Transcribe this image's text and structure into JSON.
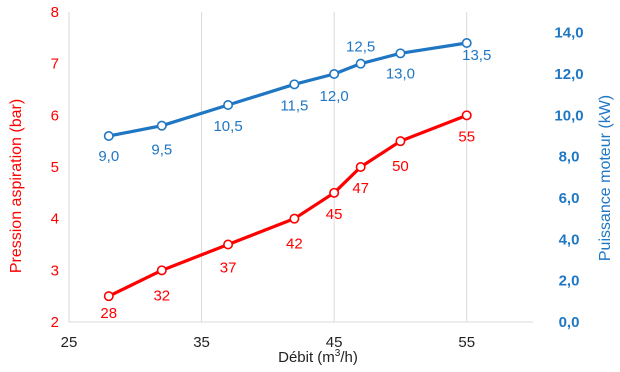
{
  "chart_data": {
    "type": "line",
    "xlabel_main": "Débit (m",
    "xlabel_sup": "3",
    "xlabel_end": "/h)",
    "ylabel_left": "Pression aspiration (bar)",
    "ylabel_right": "Puissance moteur (kW)",
    "xlim": [
      25,
      60
    ],
    "ylim_left": [
      2,
      8
    ],
    "ylim_right": [
      0,
      15
    ],
    "x_ticks": [
      "25",
      "35",
      "45",
      "55"
    ],
    "x_tick_values": [
      25,
      35,
      45,
      55
    ],
    "y_left_ticks": [
      "2",
      "3",
      "4",
      "5",
      "6",
      "7",
      "8"
    ],
    "y_left_tick_values": [
      2,
      3,
      4,
      5,
      6,
      7,
      8
    ],
    "y_right_ticks": [
      "0,0",
      "2,0",
      "4,0",
      "6,0",
      "8,0",
      "10,0",
      "12,0",
      "14,0"
    ],
    "y_right_tick_values": [
      0,
      2,
      4,
      6,
      8,
      10,
      12,
      14
    ],
    "grid": "vertical",
    "colors": {
      "pressure": "#ff0000",
      "power": "#1f77c4",
      "grid": "#d9d9d9"
    },
    "series": [
      {
        "axis": "left",
        "x": [
          28,
          32,
          37,
          42,
          45,
          47,
          50,
          55
        ],
        "values": [
          2.5,
          3.0,
          3.5,
          4.0,
          4.5,
          5.0,
          5.5,
          6.0
        ],
        "labels": [
          "28",
          "32",
          "37",
          "42",
          "45",
          "47",
          "50",
          "55"
        ]
      },
      {
        "axis": "right",
        "x": [
          28,
          32,
          37,
          42,
          45,
          47,
          50,
          55
        ],
        "values": [
          9.0,
          9.5,
          10.5,
          11.5,
          12.0,
          12.5,
          13.0,
          13.5
        ],
        "labels": [
          "9,0",
          "9,5",
          "10,5",
          "11,5",
          "12,0",
          "12,5",
          "13,0",
          "13,5"
        ]
      }
    ]
  }
}
